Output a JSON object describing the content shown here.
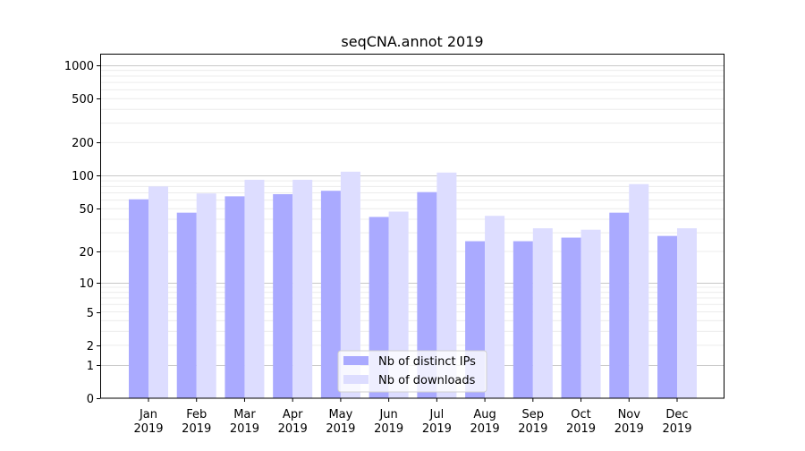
{
  "chart_data": {
    "type": "bar",
    "title": "seqCNA.annot 2019",
    "xlabel": "",
    "ylabel": "",
    "yscale": "symlog (log10(1+y))",
    "ylim": [
      0,
      1300
    ],
    "yticks": [
      0,
      1,
      2,
      5,
      10,
      20,
      50,
      100,
      200,
      500,
      1000
    ],
    "grid": true,
    "legend_placement": "lower-center",
    "categories": [
      "Jan\n2019",
      "Feb\n2019",
      "Mar\n2019",
      "Apr\n2019",
      "May\n2019",
      "Jun\n2019",
      "Jul\n2019",
      "Aug\n2019",
      "Sep\n2019",
      "Oct\n2019",
      "Nov\n2019",
      "Dec\n2019"
    ],
    "series": [
      {
        "name": "Nb of distinct IPs",
        "color": "#aaaaff",
        "values": [
          61,
          46,
          65,
          68,
          73,
          42,
          71,
          25,
          25,
          27,
          46,
          28
        ]
      },
      {
        "name": "Nb of downloads",
        "color": "#ddddff",
        "values": [
          80,
          69,
          92,
          92,
          109,
          47,
          107,
          43,
          33,
          32,
          84,
          33
        ]
      }
    ]
  }
}
